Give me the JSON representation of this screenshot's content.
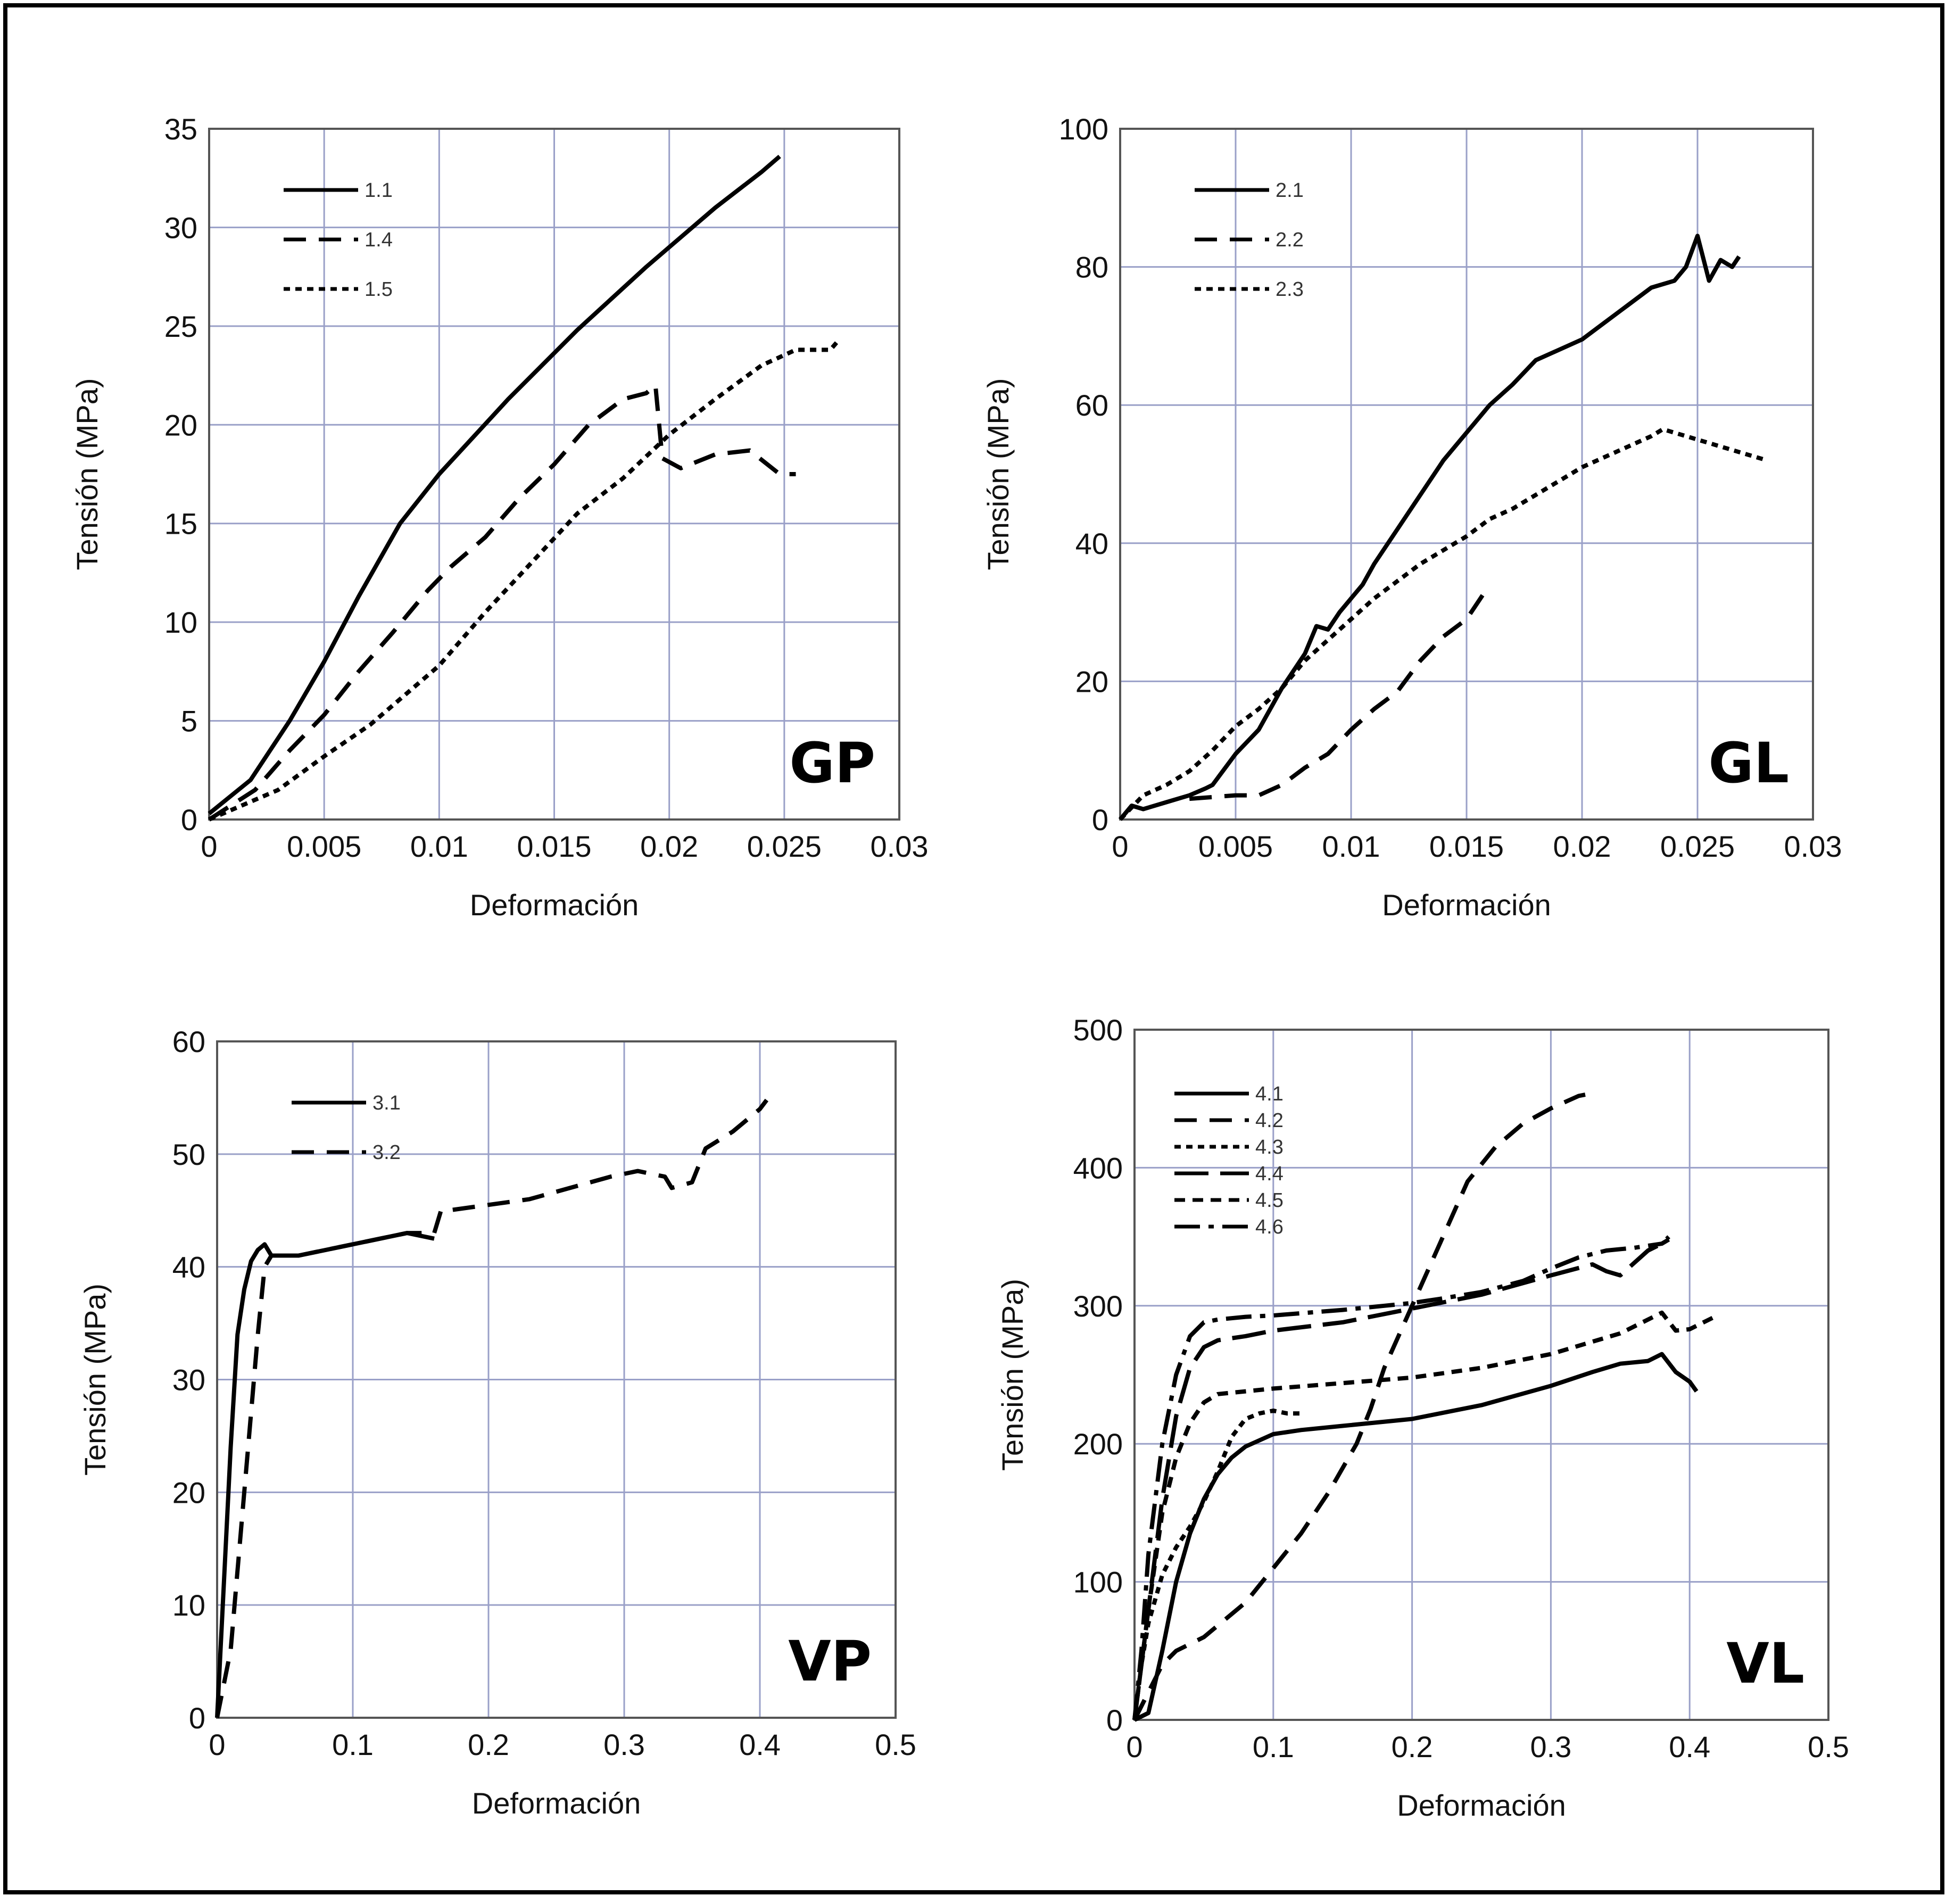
{
  "chart_data": [
    {
      "type": "line",
      "panel_label": "GP",
      "xlabel": "Deformación",
      "ylabel": "Tensión (MPa)",
      "xlim": [
        0,
        0.03
      ],
      "ylim": [
        0,
        35
      ],
      "x_ticks": [
        "0",
        "0.005",
        "0.01",
        "0.015",
        "0.02",
        "0.025",
        "0.03"
      ],
      "y_ticks": [
        "0",
        "5",
        "10",
        "15",
        "20",
        "25",
        "30",
        "35"
      ],
      "grid": true,
      "legend": "top-left",
      "series": [
        {
          "name": "1.1",
          "style": "solid",
          "x": [
            0,
            0.0018,
            0.0035,
            0.005,
            0.0065,
            0.0083,
            0.01,
            0.013,
            0.016,
            0.019,
            0.022,
            0.024,
            0.0248
          ],
          "y": [
            0.3,
            2.0,
            5.0,
            8.0,
            11.3,
            15.0,
            17.5,
            21.3,
            24.8,
            28.0,
            31.0,
            32.8,
            33.6
          ]
        },
        {
          "name": "1.4",
          "style": "dashed",
          "x": [
            0,
            0.002,
            0.0035,
            0.005,
            0.0065,
            0.008,
            0.0095,
            0.0105,
            0.012,
            0.0135,
            0.015,
            0.0165,
            0.018,
            0.019,
            0.0194,
            0.0197,
            0.0205,
            0.022,
            0.0235,
            0.0248,
            0.0255
          ],
          "y": [
            0,
            1.5,
            3.5,
            5.3,
            7.5,
            9.5,
            11.6,
            12.8,
            14.3,
            16.3,
            18.0,
            20.0,
            21.3,
            21.6,
            22.0,
            18.3,
            17.8,
            18.5,
            18.7,
            17.5,
            17.5
          ]
        },
        {
          "name": "1.5",
          "style": "dotted",
          "x": [
            0,
            0.003,
            0.005,
            0.007,
            0.0085,
            0.01,
            0.012,
            0.014,
            0.016,
            0.018,
            0.02,
            0.022,
            0.024,
            0.0255,
            0.027,
            0.0273
          ],
          "y": [
            0,
            1.5,
            3.2,
            4.8,
            6.3,
            7.8,
            10.5,
            13.0,
            15.5,
            17.3,
            19.5,
            21.3,
            23.0,
            23.8,
            23.8,
            24.2
          ]
        }
      ]
    },
    {
      "type": "line",
      "panel_label": "GL",
      "xlabel": "Deformación",
      "ylabel": "Tensión (MPa)",
      "xlim": [
        0,
        0.03
      ],
      "ylim": [
        0,
        100
      ],
      "x_ticks": [
        "0",
        "0.005",
        "0.01",
        "0.015",
        "0.02",
        "0.025",
        "0.03"
      ],
      "y_ticks": [
        "0",
        "20",
        "40",
        "60",
        "80",
        "100"
      ],
      "grid": true,
      "legend": "top-left",
      "series": [
        {
          "name": "2.1",
          "style": "solid",
          "x": [
            0,
            0.0005,
            0.001,
            0.002,
            0.003,
            0.0037,
            0.004,
            0.005,
            0.006,
            0.007,
            0.008,
            0.0085,
            0.009,
            0.0095,
            0.01,
            0.0105,
            0.011,
            0.012,
            0.013,
            0.014,
            0.015,
            0.016,
            0.017,
            0.018,
            0.019,
            0.02,
            0.021,
            0.022,
            0.023,
            0.024,
            0.0245,
            0.025,
            0.0255,
            0.026,
            0.0265,
            0.0268
          ],
          "y": [
            0,
            2.0,
            1.5,
            2.5,
            3.5,
            4.5,
            5.0,
            9.5,
            13.0,
            19.0,
            24.0,
            28.0,
            27.5,
            30.0,
            32.0,
            34.0,
            37.0,
            42.0,
            47.0,
            52.0,
            56.0,
            60.0,
            63.0,
            66.5,
            68.0,
            69.5,
            72.0,
            74.5,
            77.0,
            78.0,
            80.0,
            84.5,
            78.0,
            81.0,
            80.0,
            81.5
          ]
        },
        {
          "name": "2.2",
          "style": "dashed",
          "x": [
            0.003,
            0.005,
            0.006,
            0.007,
            0.008,
            0.009,
            0.01,
            0.011,
            0.012,
            0.013,
            0.014,
            0.015,
            0.016
          ],
          "y": [
            3.0,
            3.5,
            3.5,
            5.0,
            7.5,
            9.5,
            13.0,
            16.0,
            18.5,
            23.0,
            26.5,
            29.0,
            34.0
          ]
        },
        {
          "name": "2.3",
          "style": "dotted",
          "x": [
            0,
            0.001,
            0.002,
            0.003,
            0.004,
            0.005,
            0.006,
            0.007,
            0.008,
            0.009,
            0.01,
            0.011,
            0.012,
            0.013,
            0.014,
            0.015,
            0.016,
            0.017,
            0.018,
            0.019,
            0.02,
            0.021,
            0.022,
            0.023,
            0.0235,
            0.024,
            0.025,
            0.026,
            0.027,
            0.028
          ],
          "y": [
            0,
            3.5,
            5.0,
            7.0,
            10.0,
            13.5,
            16.0,
            19.0,
            23.0,
            26.0,
            29.0,
            32.0,
            34.5,
            37.0,
            39.0,
            41.0,
            43.5,
            45.0,
            47.0,
            49.0,
            51.0,
            52.5,
            54.0,
            55.5,
            56.5,
            56.0,
            55.0,
            54.0,
            53.0,
            52.0
          ]
        }
      ]
    },
    {
      "type": "line",
      "panel_label": "VP",
      "xlabel": "Deformación",
      "ylabel": "Tensión (MPa)",
      "xlim": [
        0,
        0.5
      ],
      "ylim": [
        0,
        60
      ],
      "x_ticks": [
        "0",
        "0.1",
        "0.2",
        "0.3",
        "0.4",
        "0.5"
      ],
      "y_ticks": [
        "0",
        "10",
        "20",
        "30",
        "40",
        "50",
        "60"
      ],
      "grid": true,
      "legend": "top-left",
      "series": [
        {
          "name": "3.1",
          "style": "solid",
          "x": [
            0,
            0.005,
            0.01,
            0.015,
            0.02,
            0.025,
            0.03,
            0.035,
            0.04,
            0.06,
            0.08,
            0.1,
            0.12,
            0.14,
            0.16
          ],
          "y": [
            0,
            12.0,
            24.0,
            34.0,
            38.0,
            40.5,
            41.5,
            42.0,
            41.0,
            41.0,
            41.5,
            42.0,
            42.5,
            43.0,
            42.5
          ]
        },
        {
          "name": "3.2",
          "style": "dashed",
          "x": [
            0,
            0.01,
            0.02,
            0.03,
            0.035,
            0.04,
            0.06,
            0.08,
            0.1,
            0.12,
            0.14,
            0.16,
            0.165,
            0.17,
            0.2,
            0.23,
            0.26,
            0.29,
            0.31,
            0.33,
            0.335,
            0.35,
            0.355,
            0.36,
            0.38,
            0.4,
            0.405
          ],
          "y": [
            0,
            6.0,
            20.0,
            34.0,
            40.0,
            41.0,
            41.0,
            41.5,
            42.0,
            42.5,
            43.0,
            43.0,
            45.0,
            45.0,
            45.5,
            46.0,
            47.0,
            48.0,
            48.5,
            48.0,
            47.0,
            47.5,
            49.0,
            50.5,
            52.0,
            54.0,
            54.8
          ]
        }
      ]
    },
    {
      "type": "line",
      "panel_label": "VL",
      "xlabel": "Deformación",
      "ylabel": "Tensión (MPa)",
      "xlim": [
        0,
        0.5
      ],
      "ylim": [
        0,
        500
      ],
      "x_ticks": [
        "0",
        "0.1",
        "0.2",
        "0.3",
        "0.4",
        "0.5"
      ],
      "y_ticks": [
        "0",
        "100",
        "200",
        "300",
        "400",
        "500"
      ],
      "grid": true,
      "legend": "top-left",
      "series": [
        {
          "name": "4.1",
          "style": "solid",
          "x": [
            0,
            0.01,
            0.02,
            0.03,
            0.04,
            0.05,
            0.06,
            0.07,
            0.08,
            0.1,
            0.12,
            0.15,
            0.2,
            0.25,
            0.3,
            0.33,
            0.35,
            0.37,
            0.38,
            0.39,
            0.4,
            0.405
          ],
          "y": [
            0,
            5,
            50,
            100,
            135,
            160,
            178,
            190,
            198,
            207,
            210,
            213,
            218,
            228,
            242,
            252,
            258,
            260,
            265,
            252,
            245,
            238
          ]
        },
        {
          "name": "4.2",
          "style": "dashed",
          "x": [
            0,
            0.01,
            0.02,
            0.03,
            0.05,
            0.08,
            0.1,
            0.12,
            0.14,
            0.16,
            0.17,
            0.18,
            0.2,
            0.22,
            0.24,
            0.26,
            0.28,
            0.3,
            0.32,
            0.33
          ],
          "y": [
            0,
            20,
            40,
            50,
            60,
            85,
            110,
            135,
            165,
            200,
            225,
            255,
            300,
            345,
            390,
            415,
            432,
            443,
            452,
            454
          ]
        },
        {
          "name": "4.3",
          "style": "dotted",
          "x": [
            0,
            0.005,
            0.01,
            0.02,
            0.03,
            0.04,
            0.05,
            0.06,
            0.07,
            0.08,
            0.09,
            0.1,
            0.11,
            0.12
          ],
          "y": [
            0,
            40,
            70,
            105,
            125,
            140,
            158,
            180,
            205,
            218,
            222,
            224,
            222,
            222
          ]
        },
        {
          "name": "4.4",
          "style": "longdash",
          "x": [
            0,
            0.01,
            0.02,
            0.03,
            0.04,
            0.05,
            0.06,
            0.08,
            0.1,
            0.15,
            0.2,
            0.25,
            0.3,
            0.33,
            0.34,
            0.35,
            0.37,
            0.38,
            0.385
          ],
          "y": [
            0,
            80,
            160,
            220,
            255,
            270,
            275,
            278,
            282,
            288,
            298,
            308,
            322,
            330,
            325,
            322,
            340,
            345,
            350
          ]
        },
        {
          "name": "4.5",
          "style": "shortdash",
          "x": [
            0,
            0.01,
            0.02,
            0.03,
            0.04,
            0.05,
            0.06,
            0.08,
            0.1,
            0.15,
            0.2,
            0.25,
            0.3,
            0.35,
            0.38,
            0.39,
            0.4,
            0.42
          ],
          "y": [
            0,
            80,
            150,
            190,
            215,
            230,
            236,
            238,
            240,
            244,
            248,
            255,
            265,
            280,
            295,
            282,
            283,
            293
          ]
        },
        {
          "name": "4.6",
          "style": "dashdot",
          "x": [
            0,
            0.005,
            0.01,
            0.02,
            0.03,
            0.04,
            0.05,
            0.06,
            0.08,
            0.1,
            0.15,
            0.18,
            0.2,
            0.22,
            0.25,
            0.28,
            0.3,
            0.32,
            0.34,
            0.36,
            0.38,
            0.385
          ],
          "y": [
            0,
            50,
            120,
            200,
            250,
            278,
            288,
            290,
            292,
            293,
            297,
            300,
            302,
            305,
            310,
            318,
            327,
            335,
            340,
            342,
            345,
            348
          ]
        }
      ]
    }
  ]
}
